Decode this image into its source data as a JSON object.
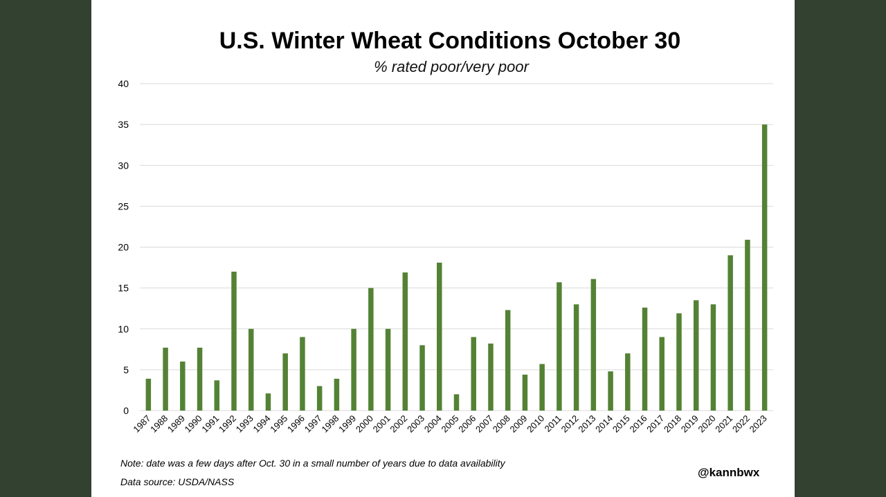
{
  "chart_data": {
    "type": "bar",
    "title": "U.S. Winter Wheat Conditions October 30",
    "subtitle": "% rated poor/very poor",
    "categories": [
      "1987",
      "1988",
      "1989",
      "1990",
      "1991",
      "1992",
      "1993",
      "1994",
      "1995",
      "1996",
      "1997",
      "1998",
      "1999",
      "2000",
      "2001",
      "2002",
      "2003",
      "2004",
      "2005",
      "2006",
      "2007",
      "2008",
      "2009",
      "2010",
      "2011",
      "2012",
      "2013",
      "2014",
      "2015",
      "2016",
      "2017",
      "2018",
      "2019",
      "2020",
      "2021",
      "2022",
      "2023"
    ],
    "values": [
      3.9,
      7.7,
      6,
      7.7,
      3.7,
      17,
      10,
      2.1,
      7,
      9,
      3,
      3.9,
      10,
      15,
      10,
      16.9,
      8,
      18.1,
      2,
      9,
      8.2,
      12.3,
      4.4,
      5.7,
      15.7,
      13,
      16.1,
      4.8,
      7,
      12.6,
      9,
      11.9,
      13.5,
      13,
      19,
      20.9,
      35
    ],
    "ylim": [
      0,
      40
    ],
    "yticks": [
      0,
      5,
      10,
      15,
      20,
      25,
      30,
      35,
      40
    ],
    "grid": true,
    "bar_color": "#548235",
    "grid_color": "#d9d9d9"
  },
  "footer": {
    "note": "Note: date was a few days after Oct. 30 in a small number of years due to data availability",
    "source": "Data source: USDA/NASS",
    "handle": "@kannbwx"
  }
}
